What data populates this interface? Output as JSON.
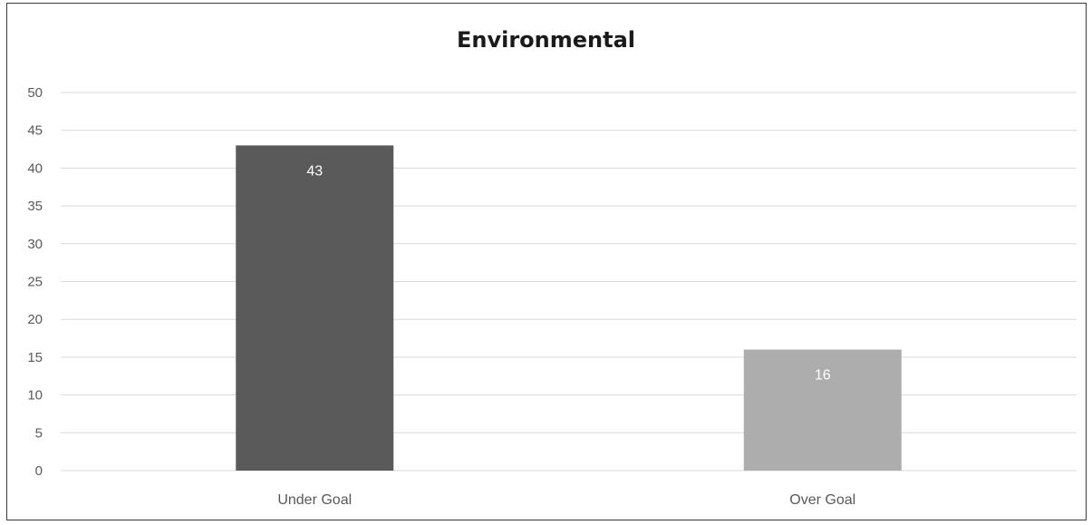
{
  "chart_data": {
    "type": "bar",
    "title": "Environmental",
    "categories": [
      "Under Goal",
      "Over Goal"
    ],
    "values": [
      43,
      16
    ],
    "bar_colors": [
      "#5a5a5a",
      "#adadad"
    ],
    "xlabel": "",
    "ylabel": "",
    "ylim": [
      0,
      50
    ],
    "y_ticks": [
      0,
      5,
      10,
      15,
      20,
      25,
      30,
      35,
      40,
      45,
      50
    ],
    "grid": true,
    "gridline_color": "#d9d9d9",
    "data_labels": true,
    "legend": "none"
  }
}
